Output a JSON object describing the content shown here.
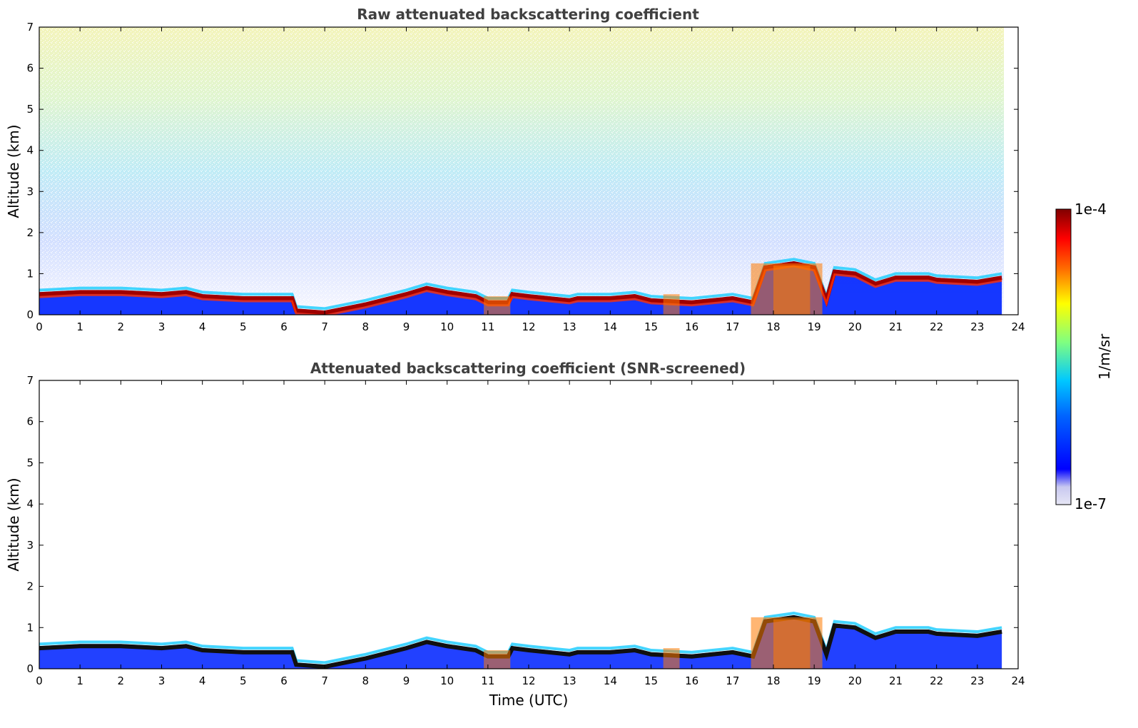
{
  "chart_data": [
    {
      "type": "heatmap",
      "title": "Raw attenuated backscattering coefficient",
      "xlabel": "",
      "ylabel": "Altitude (km)",
      "xlim": [
        0,
        24
      ],
      "ylim": [
        0,
        7
      ],
      "xticks": [
        "0",
        "1",
        "2",
        "3",
        "4",
        "5",
        "6",
        "7",
        "8",
        "9",
        "10",
        "11",
        "12",
        "13",
        "14",
        "15",
        "16",
        "17",
        "18",
        "19",
        "20",
        "21",
        "22",
        "23",
        "24"
      ],
      "yticks": [
        "0",
        "1",
        "2",
        "3",
        "4",
        "5",
        "6",
        "7"
      ],
      "data_end_hour": 23.65,
      "layer_top_profile": {
        "hours": [
          0,
          1,
          2,
          3,
          3.6,
          4,
          5,
          6.2,
          6.3,
          7,
          8,
          9,
          9.5,
          10,
          10.7,
          11,
          11.5,
          11.6,
          12,
          13,
          13.2,
          14,
          14.6,
          15,
          16,
          17,
          17.5,
          17.8,
          18.5,
          19,
          19.3,
          19.5,
          20,
          20.5,
          21,
          21.8,
          22,
          23,
          23.6
        ],
        "km": [
          0.55,
          0.6,
          0.6,
          0.55,
          0.6,
          0.5,
          0.45,
          0.45,
          0.15,
          0.1,
          0.3,
          0.55,
          0.7,
          0.6,
          0.5,
          0.35,
          0.35,
          0.55,
          0.5,
          0.4,
          0.45,
          0.45,
          0.5,
          0.4,
          0.35,
          0.45,
          0.35,
          1.2,
          1.3,
          1.2,
          0.4,
          1.1,
          1.05,
          0.8,
          0.95,
          0.95,
          0.9,
          0.85,
          0.95
        ]
      },
      "description_of_signal": "Strong boundary-layer backscatter (~1e-4) below ~1.3 km; noisy background increasing with altitude"
    },
    {
      "type": "heatmap",
      "title": "Attenuated backscattering coefficient (SNR-screened)",
      "xlabel": "Time (UTC)",
      "ylabel": "Altitude (km)",
      "xlim": [
        0,
        24
      ],
      "ylim": [
        0,
        7
      ],
      "xticks": [
        "0",
        "1",
        "2",
        "3",
        "4",
        "5",
        "6",
        "7",
        "8",
        "9",
        "10",
        "11",
        "12",
        "13",
        "14",
        "15",
        "16",
        "17",
        "18",
        "19",
        "20",
        "21",
        "22",
        "23",
        "24"
      ],
      "yticks": [
        "0",
        "1",
        "2",
        "3",
        "4",
        "5",
        "6",
        "7"
      ],
      "data_end_hour": 23.65,
      "description_of_signal": "Only boundary-layer signal retained below ~1.4 km; upper noise removed"
    }
  ],
  "colorbar": {
    "label": "1/m/sr",
    "max_label": "1e-4",
    "min_label": "1e-7",
    "scale": "log",
    "colormap": "jet",
    "colors": [
      "#e6e6f5",
      "#0000ff",
      "#00c8ff",
      "#80ff80",
      "#ffff00",
      "#ff6a00",
      "#ff0000",
      "#800000"
    ]
  }
}
